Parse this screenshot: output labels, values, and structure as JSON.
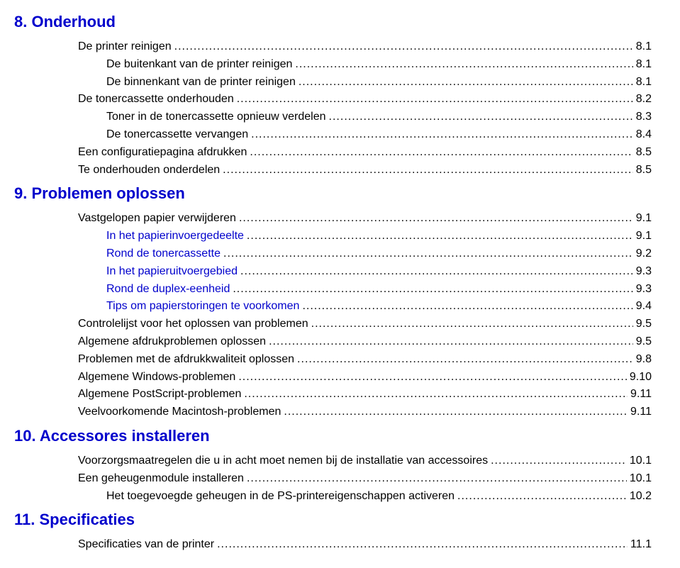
{
  "colors": {
    "heading": "#0000cc",
    "text": "#000000",
    "background": "#ffffff"
  },
  "typography": {
    "heading_fontsize": 22,
    "body_fontsize": 16,
    "font_family": "Arial"
  },
  "sections": [
    {
      "title": "8. Onderhoud",
      "entries": [
        {
          "label": "De printer reinigen",
          "page": "8.1",
          "indent": 2,
          "blue": false
        },
        {
          "label": "De buitenkant van de printer reinigen",
          "page": "8.1",
          "indent": 3,
          "blue": false
        },
        {
          "label": "De binnenkant van de printer reinigen",
          "page": "8.1",
          "indent": 3,
          "blue": false
        },
        {
          "label": "De tonercassette onderhouden",
          "page": "8.2",
          "indent": 2,
          "blue": false
        },
        {
          "label": "Toner in de tonercassette opnieuw verdelen",
          "page": "8.3",
          "indent": 3,
          "blue": false
        },
        {
          "label": "De tonercassette vervangen",
          "page": "8.4",
          "indent": 3,
          "blue": false
        },
        {
          "label": "Een configuratiepagina afdrukken",
          "page": "8.5",
          "indent": 2,
          "blue": false
        },
        {
          "label": "Te onderhouden onderdelen",
          "page": "8.5",
          "indent": 2,
          "blue": false
        }
      ]
    },
    {
      "title": "9. Problemen oplossen",
      "entries": [
        {
          "label": "Vastgelopen papier verwijderen",
          "page": "9.1",
          "indent": 2,
          "blue": false
        },
        {
          "label": "In het papierinvoergedeelte",
          "page": "9.1",
          "indent": 3,
          "blue": true
        },
        {
          "label": "Rond de tonercassette",
          "page": "9.2",
          "indent": 3,
          "blue": true
        },
        {
          "label": "In het papieruitvoergebied",
          "page": "9.3",
          "indent": 3,
          "blue": true
        },
        {
          "label": "Rond de duplex-eenheid",
          "page": "9.3",
          "indent": 3,
          "blue": true
        },
        {
          "label": "Tips om papierstoringen te voorkomen",
          "page": "9.4",
          "indent": 3,
          "blue": true
        },
        {
          "label": "Controlelijst voor het oplossen van problemen",
          "page": "9.5",
          "indent": 2,
          "blue": false
        },
        {
          "label": "Algemene afdrukproblemen oplossen",
          "page": "9.5",
          "indent": 2,
          "blue": false
        },
        {
          "label": "Problemen met de afdrukkwaliteit oplossen",
          "page": "9.8",
          "indent": 2,
          "blue": false
        },
        {
          "label": "Algemene Windows-problemen",
          "page": "9.10",
          "indent": 2,
          "blue": false
        },
        {
          "label": "Algemene PostScript-problemen",
          "page": "9.11",
          "indent": 2,
          "blue": false
        },
        {
          "label": "Veelvoorkomende Macintosh-problemen",
          "page": "9.11",
          "indent": 2,
          "blue": false
        }
      ]
    },
    {
      "title": "10. Accessores installeren",
      "entries": [
        {
          "label": "Voorzorgsmaatregelen die u in acht moet nemen bij de installatie van accessoires",
          "page": "10.1",
          "indent": 2,
          "blue": false
        },
        {
          "label": "Een geheugenmodule installeren",
          "page": "10.1",
          "indent": 2,
          "blue": false
        },
        {
          "label": "Het toegevoegde geheugen in de PS-printereigenschappen activeren",
          "page": "10.2",
          "indent": 3,
          "blue": false
        }
      ]
    },
    {
      "title": "11. Specificaties",
      "entries": [
        {
          "label": "Specificaties van de printer",
          "page": "11.1",
          "indent": 2,
          "blue": false
        }
      ]
    }
  ]
}
